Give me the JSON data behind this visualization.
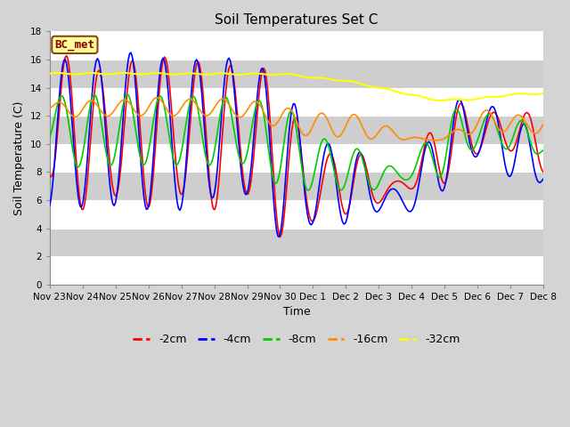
{
  "title": "Soil Temperatures Set C",
  "xlabel": "Time",
  "ylabel": "Soil Temperature (C)",
  "ylim": [
    0,
    18
  ],
  "yticks": [
    0,
    2,
    4,
    6,
    8,
    10,
    12,
    14,
    16,
    18
  ],
  "annotation_text": "BC_met",
  "annotation_color": "#8B0000",
  "annotation_bg": "#FFFF99",
  "annotation_border": "#8B4513",
  "series_colors": {
    "-2cm": "#FF0000",
    "-4cm": "#0000FF",
    "-8cm": "#00CC00",
    "-16cm": "#FF8C00",
    "-32cm": "#FFFF00"
  },
  "series_linewidths": {
    "-2cm": 1.2,
    "-4cm": 1.2,
    "-8cm": 1.2,
    "-16cm": 1.2,
    "-32cm": 1.5
  },
  "fig_bg_color": "#D4D4D4",
  "plot_bg_color": "#E8E8E8",
  "alt_band_color": "#CECECE",
  "grid_color": "#FFFFFF",
  "xtick_labels": [
    "Nov 23",
    "Nov 24",
    "Nov 25",
    "Nov 26",
    "Nov 27",
    "Nov 28",
    "Nov 29",
    "Nov 30",
    "Dec 1",
    "Dec 2",
    "Dec 3",
    "Dec 4",
    "Dec 5",
    "Dec 6",
    "Dec 7",
    "Dec 8"
  ],
  "title_fontsize": 11,
  "label_fontsize": 9,
  "tick_fontsize": 7.5,
  "legend_fontsize": 9
}
